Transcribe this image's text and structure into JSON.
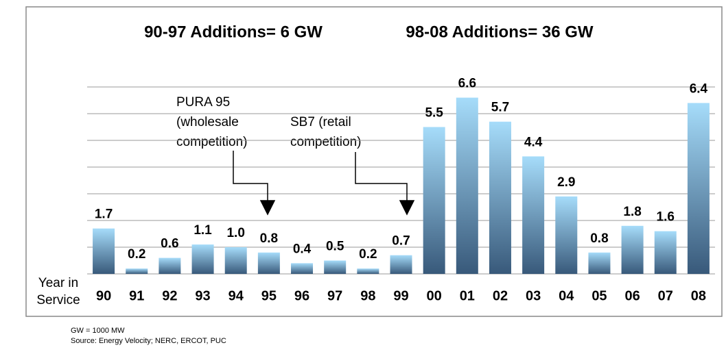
{
  "chart_data": {
    "type": "bar",
    "titles": [
      "90-97 Additions= 6 GW",
      "98-08 Additions= 36 GW"
    ],
    "x_label_lines": [
      "Year in",
      "Service"
    ],
    "categories": [
      "90",
      "91",
      "92",
      "93",
      "94",
      "95",
      "96",
      "97",
      "98",
      "99",
      "00",
      "01",
      "02",
      "03",
      "04",
      "05",
      "06",
      "07",
      "08"
    ],
    "values": [
      1.7,
      0.2,
      0.6,
      1.1,
      1.0,
      0.8,
      0.4,
      0.5,
      0.2,
      0.7,
      5.5,
      6.6,
      5.7,
      4.4,
      2.9,
      0.8,
      1.8,
      1.6,
      6.4
    ],
    "value_labels": [
      "1.7",
      "0.2",
      "0.6",
      "1.1",
      "1.0",
      "0.8",
      "0.4",
      "0.5",
      "0.2",
      "0.7",
      "5.5",
      "6.6",
      "5.7",
      "4.4",
      "2.9",
      "0.8",
      "1.8",
      "1.6",
      "6.4"
    ],
    "color_top": "#a6dcfa",
    "color_bottom": "#38597a",
    "ylim": [
      0,
      7
    ],
    "yticks": [
      0,
      1,
      2,
      3,
      4,
      5,
      6,
      7
    ],
    "grid": true,
    "annotations": [
      {
        "lines": [
          "PURA 95",
          "(wholesale",
          "competition)"
        ]
      },
      {
        "lines": [
          "SB7 (retail",
          "competition)"
        ]
      }
    ],
    "footnotes": [
      "GW = 1000 MW",
      "Source: Energy Velocity; NERC, ERCOT, PUC"
    ]
  }
}
